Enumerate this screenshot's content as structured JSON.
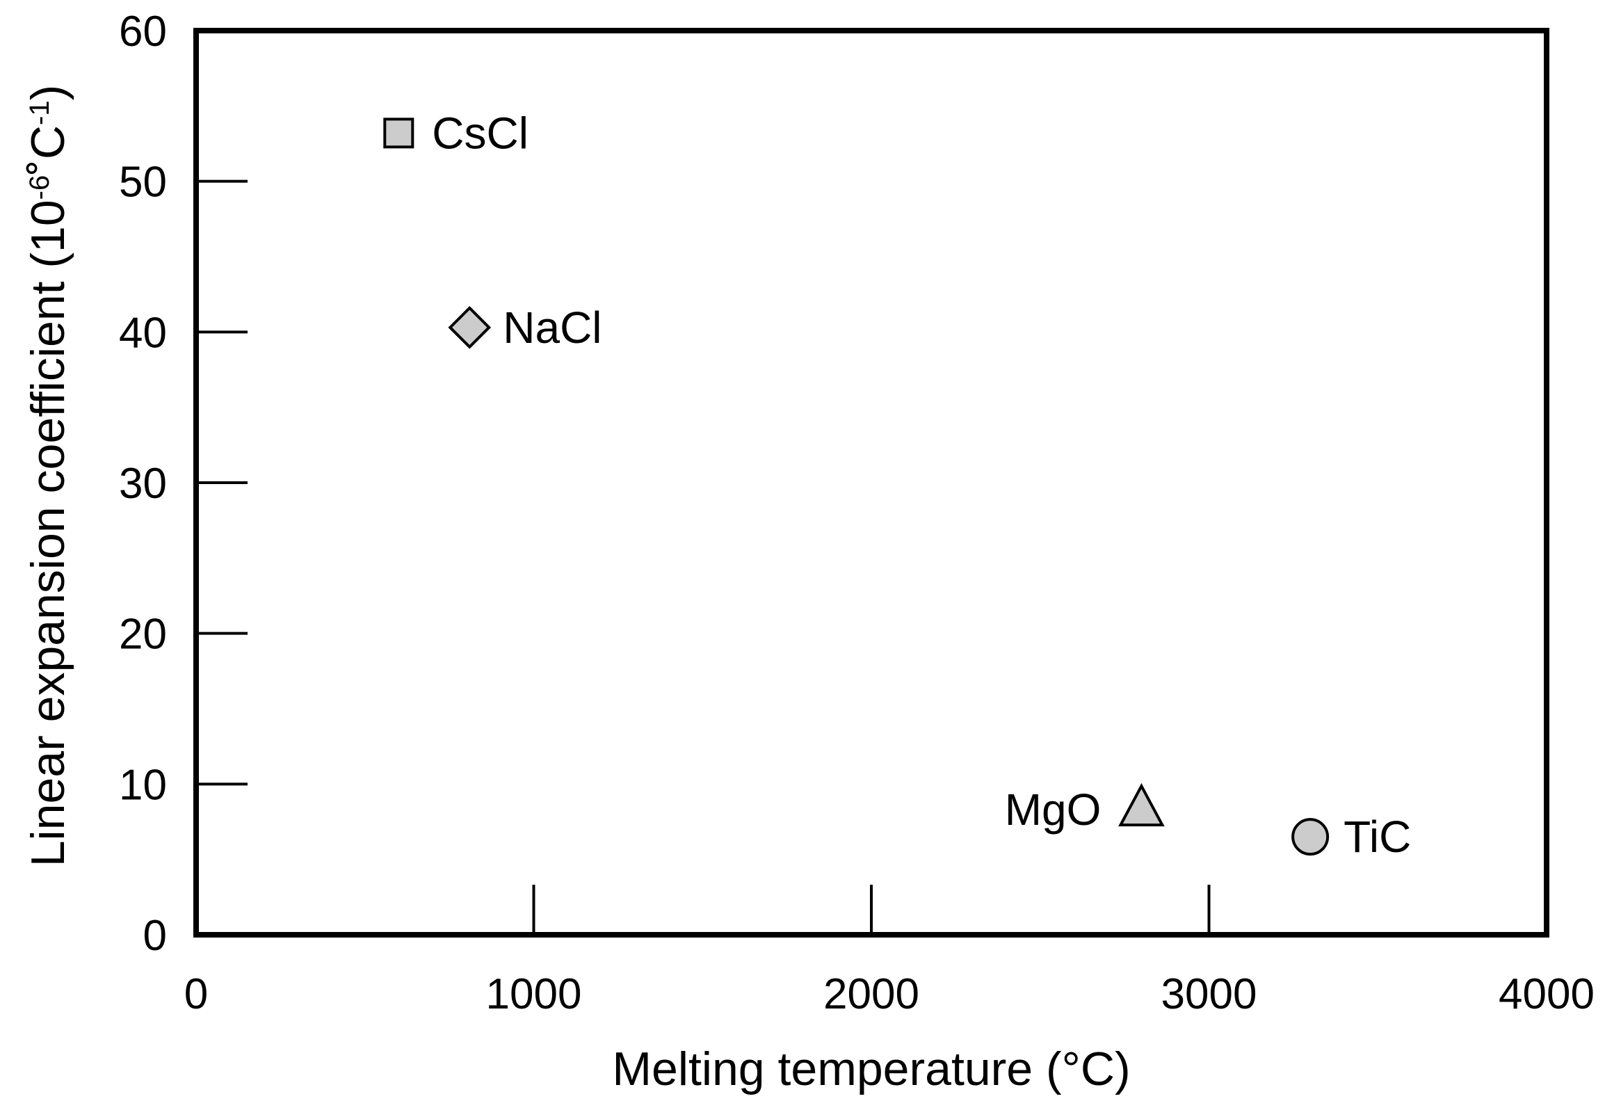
{
  "chart_data": {
    "type": "scatter",
    "xlabel": "Melting temperature (°C)",
    "ylabel_main": "Linear expansion coefficient (10",
    "ylabel_exp1": "-6",
    "ylabel_mid": "˚C",
    "ylabel_exp2": "-1",
    "ylabel_close": ")",
    "xlim": [
      0,
      4000
    ],
    "ylim": [
      0,
      60
    ],
    "xticks": [
      "0",
      "1000",
      "2000",
      "3000",
      "4000"
    ],
    "yticks": [
      "0",
      "10",
      "20",
      "30",
      "40",
      "50",
      "60"
    ],
    "grid": false,
    "points": [
      {
        "label": "CsCl",
        "x": 600,
        "y": 53.2,
        "marker": "square",
        "label_side": "right"
      },
      {
        "label": "NaCl",
        "x": 810,
        "y": 40.3,
        "marker": "diamond",
        "label_side": "right"
      },
      {
        "label": "MgO",
        "x": 2800,
        "y": 8.3,
        "marker": "triangle",
        "label_side": "left"
      },
      {
        "label": "TiC",
        "x": 3300,
        "y": 6.5,
        "marker": "circle",
        "label_side": "right"
      }
    ],
    "marker_fill": "#cccccc",
    "marker_stroke": "#000000"
  }
}
